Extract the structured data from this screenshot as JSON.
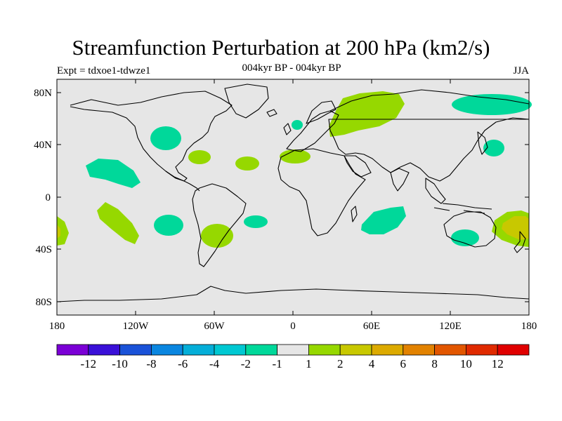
{
  "title": "Streamfunction Perturbation at 200 hPa (km2/s)",
  "subtitle": "004kyr BP - 004kyr BP",
  "left_label": "Expt = tdxoe1-tdwze1",
  "right_label": "JJA",
  "lat_ticks": [
    "80N",
    "40N",
    "0",
    "40S",
    "80S"
  ],
  "lon_ticks": [
    "180",
    "120W",
    "60W",
    "0",
    "60E",
    "120E",
    "180"
  ],
  "colorbar": {
    "labels": [
      "-12",
      "-10",
      "-8",
      "-6",
      "-4",
      "-2",
      "-1",
      "1",
      "2",
      "4",
      "6",
      "8",
      "10",
      "12"
    ],
    "colors": [
      "#7b00d6",
      "#3a10d8",
      "#1a52d8",
      "#0a86e0",
      "#04aed8",
      "#00c8d2",
      "#00d89a",
      "#e6e6e6",
      "#96d800",
      "#c8c800",
      "#dcaa00",
      "#e28200",
      "#e25600",
      "#e02a00",
      "#e00000"
    ]
  },
  "colors": {
    "ocean_land_bg": "#e6e6e6",
    "pos_light": "#96d800",
    "pos_mid": "#c8c800",
    "neg_light": "#00d89a",
    "neg_mid": "#00c8d2"
  }
}
